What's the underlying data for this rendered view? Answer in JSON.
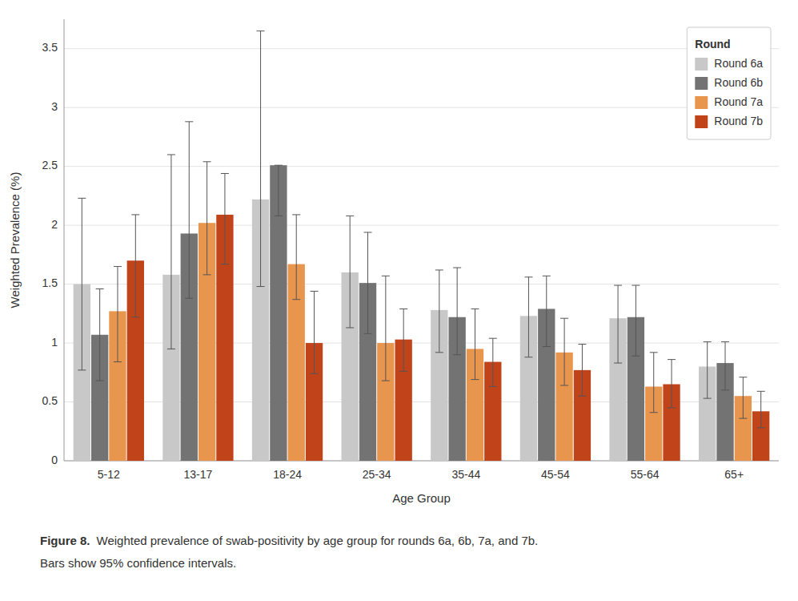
{
  "chart_data": {
    "type": "bar",
    "xlabel": "Age Group",
    "ylabel": "Weighted Prevalence (%)",
    "categories": [
      "5-12",
      "13-17",
      "18-24",
      "25-34",
      "35-44",
      "45-54",
      "55-64",
      "65+"
    ],
    "series": [
      {
        "name": "Round 6a",
        "color": "#c8c8c8",
        "values": [
          1.5,
          1.58,
          2.22,
          1.6,
          1.28,
          1.23,
          1.21,
          0.8
        ],
        "ci_lower": [
          0.77,
          0.95,
          1.48,
          1.13,
          0.92,
          0.88,
          0.83,
          0.53
        ],
        "ci_upper": [
          2.23,
          2.6,
          3.65,
          2.08,
          1.62,
          1.56,
          1.49,
          1.01
        ]
      },
      {
        "name": "Round 6b",
        "color": "#737373",
        "values": [
          1.07,
          1.93,
          2.51,
          1.51,
          1.22,
          1.29,
          1.22,
          0.83
        ],
        "ci_lower": [
          0.68,
          1.38,
          2.08,
          1.08,
          0.9,
          0.97,
          0.89,
          0.6
        ],
        "ci_upper": [
          1.46,
          2.88,
          2.51,
          1.94,
          1.64,
          1.57,
          1.49,
          1.01
        ]
      },
      {
        "name": "Round 7a",
        "color": "#e8954e",
        "values": [
          1.27,
          2.02,
          1.67,
          1.0,
          0.95,
          0.92,
          0.63,
          0.55
        ],
        "ci_lower": [
          0.84,
          1.58,
          1.37,
          0.68,
          0.69,
          0.64,
          0.41,
          0.36
        ],
        "ci_upper": [
          1.65,
          2.54,
          2.09,
          1.57,
          1.29,
          1.21,
          0.92,
          0.71
        ]
      },
      {
        "name": "Round 7b",
        "color": "#c0431a",
        "values": [
          1.7,
          2.09,
          1.0,
          1.03,
          0.84,
          0.77,
          0.65,
          0.42
        ],
        "ci_lower": [
          1.22,
          1.67,
          0.74,
          0.76,
          0.63,
          0.55,
          0.45,
          0.28
        ],
        "ci_upper": [
          2.09,
          2.44,
          1.44,
          1.29,
          1.04,
          0.99,
          0.86,
          0.59
        ]
      }
    ],
    "ylim": [
      0,
      3.75
    ],
    "yticks": [
      0,
      0.5,
      1,
      1.5,
      2,
      2.5,
      3,
      3.5
    ],
    "grid": true,
    "legend": "upper right",
    "legend_title": "Round",
    "annotations": [
      "Figure 8.",
      "Weighted prevalence of swab-positivity by age group for rounds 6a, 6b, 7a, and 7b.",
      "Bars show 95% confidence intervals."
    ]
  }
}
